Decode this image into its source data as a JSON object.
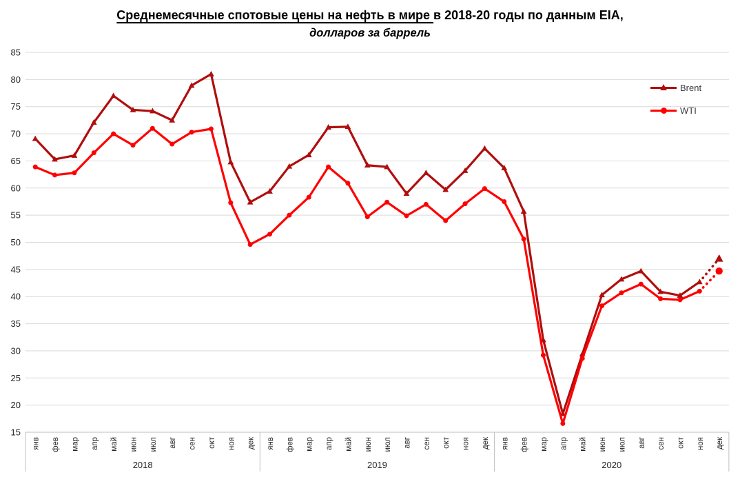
{
  "title": {
    "underlined_part": "Среднемесячные спотовые цены на нефть в мире ",
    "rest": "в 2018-20 годы по данным EIA,",
    "subtitle": "долларов за баррель"
  },
  "legend": [
    {
      "label": "Brent",
      "color": "#B00E0E",
      "marker": "triangle"
    },
    {
      "label": "WTI",
      "color": "#FF0000",
      "marker": "circle"
    }
  ],
  "colors": {
    "brent": "#B00E0E",
    "wti": "#FF0000",
    "gridline": "#D9D9D9",
    "axis_line": "#BFBFBF",
    "tick_text": "#262626"
  },
  "chart_data": {
    "type": "line",
    "title": "Среднемесячные спотовые цены на нефть в мире в 2018-20 годы по данным EIA",
    "subtitle": "долларов за баррель",
    "grid": true,
    "legend_position": "top-right",
    "ylim": [
      15,
      85
    ],
    "y_ticks": [
      15,
      20,
      25,
      30,
      35,
      40,
      45,
      50,
      55,
      60,
      65,
      70,
      75,
      80,
      85
    ],
    "x_month_labels": [
      "янв",
      "фев",
      "мар",
      "апр",
      "май",
      "июн",
      "июл",
      "авг",
      "сен",
      "окт",
      "ноя",
      "дек",
      "янв",
      "фев",
      "мар",
      "апр",
      "май",
      "июн",
      "июл",
      "авг",
      "сен",
      "окт",
      "ноя",
      "дек",
      "янв",
      "фев",
      "мар",
      "апр",
      "май",
      "июн",
      "июл",
      "авг",
      "сен",
      "окт",
      "ноя",
      "дек"
    ],
    "year_labels": [
      "2018",
      "2019",
      "2020"
    ],
    "series": [
      {
        "name": "Brent",
        "color": "#B00E0E",
        "marker": "triangle",
        "forecast_start_index": 34,
        "values": [
          69.1,
          65.3,
          66.0,
          72.1,
          77.0,
          74.4,
          74.2,
          72.5,
          78.9,
          81.0,
          64.8,
          57.4,
          59.4,
          64.0,
          66.1,
          71.2,
          71.3,
          64.2,
          63.9,
          59.0,
          62.8,
          59.7,
          63.2,
          67.3,
          63.7,
          55.7,
          32.0,
          18.4,
          29.4,
          40.3,
          43.2,
          44.7,
          40.9,
          40.2,
          42.7,
          47.0
        ]
      },
      {
        "name": "WTI",
        "color": "#FF0000",
        "marker": "circle",
        "forecast_start_index": 34,
        "values": [
          63.9,
          62.4,
          62.8,
          66.5,
          70.0,
          67.9,
          71.0,
          68.1,
          70.3,
          70.9,
          57.3,
          49.6,
          51.5,
          55.0,
          58.3,
          63.9,
          60.9,
          54.7,
          57.4,
          54.9,
          57.0,
          54.0,
          57.1,
          59.9,
          57.5,
          50.6,
          29.2,
          16.6,
          28.6,
          38.3,
          40.7,
          42.3,
          39.6,
          39.4,
          41.0,
          44.7
        ]
      }
    ]
  }
}
